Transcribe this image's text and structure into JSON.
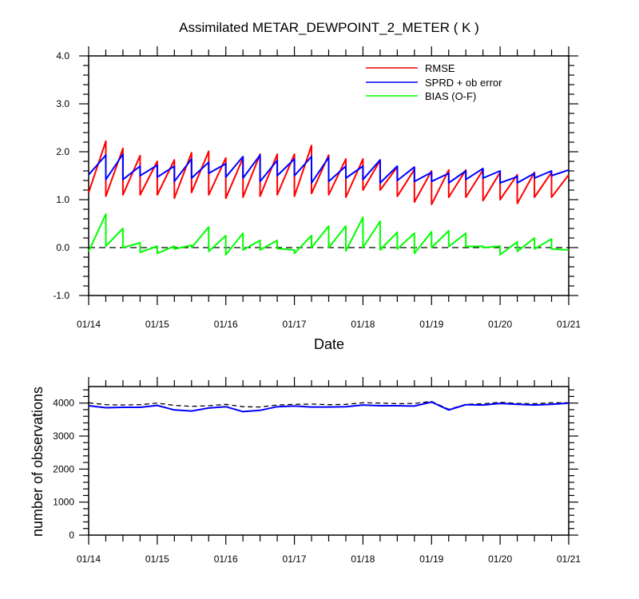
{
  "chart_data": [
    {
      "type": "line",
      "title": "Assimilated METAR_DEWPOINT_2_METER ( K )",
      "xlabel": "Date",
      "ylabel": "",
      "xlim": [
        0,
        7
      ],
      "ylim": [
        -1.0,
        4.0
      ],
      "xtick_labels": [
        "01/14",
        "01/15",
        "01/16",
        "01/17",
        "01/18",
        "01/19",
        "01/20",
        "01/21"
      ],
      "ytick_labels": [
        "-1.0",
        "0.0",
        "1.0",
        "2.0",
        "3.0",
        "4.0"
      ],
      "ytick_values": [
        -1,
        0,
        1,
        2,
        3,
        4
      ],
      "legend_position": "top-right",
      "zero_line": "dashed",
      "series": [
        {
          "name": "RMSE",
          "color": "#ff0000",
          "x": [
            0,
            0.25,
            0.25,
            0.5,
            0.5,
            0.75,
            0.75,
            1,
            1,
            1.25,
            1.25,
            1.5,
            1.5,
            1.75,
            1.75,
            2,
            2,
            2.25,
            2.25,
            2.5,
            2.5,
            2.75,
            2.75,
            3,
            3,
            3.25,
            3.25,
            3.5,
            3.5,
            3.75,
            3.75,
            4,
            4,
            4.25,
            4.25,
            4.5,
            4.5,
            4.75,
            4.75,
            5,
            5,
            5.25,
            5.25,
            5.5,
            5.5,
            5.75,
            5.75,
            6,
            6,
            6.25,
            6.25,
            6.5,
            6.5,
            6.75,
            6.75,
            7
          ],
          "y": [
            1.15,
            2.22,
            1.07,
            2.07,
            1.1,
            1.92,
            1.1,
            1.8,
            1.1,
            1.83,
            1.03,
            1.98,
            1.15,
            2.01,
            1.1,
            1.87,
            1.03,
            1.87,
            1.05,
            1.95,
            1.07,
            1.95,
            1.1,
            1.95,
            1.07,
            2.13,
            1.13,
            1.93,
            1.1,
            1.85,
            1.05,
            1.85,
            1.2,
            1.82,
            1.2,
            1.68,
            1.07,
            1.63,
            0.95,
            1.6,
            0.9,
            1.62,
            1.05,
            1.62,
            1.05,
            1.62,
            0.98,
            1.57,
            1.0,
            1.52,
            0.92,
            1.57,
            1.05,
            1.57,
            1.05,
            1.52
          ]
        },
        {
          "name": "SPRD + ob error",
          "color": "#0000ff",
          "x": [
            0,
            0.25,
            0.25,
            0.5,
            0.5,
            0.75,
            0.75,
            1,
            1,
            1.25,
            1.25,
            1.5,
            1.5,
            1.75,
            1.75,
            2,
            2,
            2.25,
            2.25,
            2.5,
            2.5,
            2.75,
            2.75,
            3,
            3,
            3.25,
            3.25,
            3.5,
            3.5,
            3.75,
            3.75,
            4,
            4,
            4.25,
            4.25,
            4.5,
            4.5,
            4.75,
            4.75,
            5,
            5,
            5.25,
            5.25,
            5.5,
            5.5,
            5.75,
            5.75,
            6,
            6,
            6.25,
            6.25,
            6.5,
            6.5,
            6.75,
            6.75,
            7
          ],
          "y": [
            1.52,
            1.93,
            1.42,
            1.95,
            1.42,
            1.7,
            1.5,
            1.72,
            1.47,
            1.7,
            1.38,
            1.85,
            1.45,
            1.78,
            1.55,
            1.75,
            1.47,
            1.9,
            1.45,
            1.93,
            1.38,
            1.82,
            1.5,
            1.85,
            1.5,
            1.9,
            1.35,
            1.88,
            1.38,
            1.7,
            1.45,
            1.7,
            1.42,
            1.83,
            1.35,
            1.7,
            1.4,
            1.68,
            1.38,
            1.57,
            1.38,
            1.55,
            1.35,
            1.6,
            1.42,
            1.65,
            1.45,
            1.6,
            1.35,
            1.48,
            1.35,
            1.55,
            1.45,
            1.6,
            1.5,
            1.62
          ]
        },
        {
          "name": "BIAS (O-F)",
          "color": "#00ff00",
          "x": [
            0,
            0.25,
            0.25,
            0.5,
            0.5,
            0.75,
            0.75,
            1,
            1,
            1.25,
            1.25,
            1.5,
            1.5,
            1.75,
            1.75,
            2,
            2,
            2.25,
            2.25,
            2.5,
            2.5,
            2.75,
            2.75,
            3,
            3,
            3.25,
            3.25,
            3.5,
            3.5,
            3.75,
            3.75,
            4,
            4,
            4.25,
            4.25,
            4.5,
            4.5,
            4.75,
            4.75,
            5,
            5,
            5.25,
            5.25,
            5.5,
            5.5,
            5.75,
            5.75,
            6,
            6,
            6.25,
            6.25,
            6.5,
            6.5,
            6.75,
            6.75,
            7
          ],
          "y": [
            -0.08,
            0.7,
            0.03,
            0.4,
            0.0,
            0.1,
            -0.1,
            0.03,
            -0.12,
            0.03,
            -0.03,
            0.05,
            0.0,
            0.43,
            -0.08,
            0.25,
            -0.15,
            0.3,
            -0.05,
            0.15,
            -0.05,
            0.15,
            -0.02,
            -0.05,
            -0.12,
            0.25,
            0.0,
            0.45,
            0.0,
            0.45,
            -0.07,
            0.63,
            0.0,
            0.55,
            -0.05,
            0.32,
            -0.03,
            0.3,
            -0.12,
            0.33,
            0.0,
            0.35,
            0.02,
            0.3,
            0.02,
            0.03,
            0.0,
            0.03,
            -0.15,
            0.12,
            -0.08,
            0.2,
            -0.03,
            0.18,
            -0.03,
            -0.05
          ]
        }
      ]
    },
    {
      "type": "line",
      "title": "",
      "xlabel": "",
      "ylabel": "number of observations",
      "xlim": [
        0,
        7
      ],
      "ylim": [
        0,
        4500
      ],
      "xtick_labels": [
        "01/14",
        "01/15",
        "01/16",
        "01/17",
        "01/18",
        "01/19",
        "01/20",
        "01/21"
      ],
      "ytick_labels": [
        "0",
        "1000",
        "2000",
        "3000",
        "4000"
      ],
      "ytick_values": [
        0,
        1000,
        2000,
        3000,
        4000
      ],
      "series": [
        {
          "name": "",
          "color": "#000000",
          "style": "dashed",
          "x": [
            0,
            0.25,
            0.5,
            0.75,
            1,
            1.25,
            1.5,
            1.75,
            2,
            2.25,
            2.5,
            2.75,
            3,
            3.25,
            3.5,
            3.75,
            4,
            4.25,
            4.5,
            4.75,
            5,
            5.25,
            5.5,
            5.75,
            6,
            6.25,
            6.5,
            6.75,
            7
          ],
          "y": [
            4010,
            3950,
            3940,
            3950,
            4000,
            3930,
            3900,
            3920,
            3960,
            3890,
            3880,
            3940,
            3960,
            3970,
            3950,
            3960,
            4010,
            4000,
            3980,
            3990,
            4050,
            3810,
            3960,
            3980,
            4020,
            3990,
            3980,
            4010,
            4010
          ]
        },
        {
          "name": "",
          "color": "#0000ff",
          "style": "solid",
          "x": [
            0,
            0.25,
            0.5,
            0.75,
            1,
            1.25,
            1.5,
            1.75,
            2,
            2.25,
            2.5,
            2.75,
            3,
            3.25,
            3.5,
            3.75,
            4,
            4.25,
            4.5,
            4.75,
            5,
            5.25,
            5.5,
            5.75,
            6,
            6.25,
            6.5,
            6.75,
            7
          ],
          "y": [
            3920,
            3860,
            3870,
            3870,
            3930,
            3790,
            3760,
            3850,
            3890,
            3740,
            3780,
            3890,
            3910,
            3880,
            3880,
            3890,
            3940,
            3920,
            3920,
            3910,
            4030,
            3790,
            3950,
            3940,
            3990,
            3960,
            3940,
            3960,
            4000
          ]
        }
      ]
    }
  ]
}
